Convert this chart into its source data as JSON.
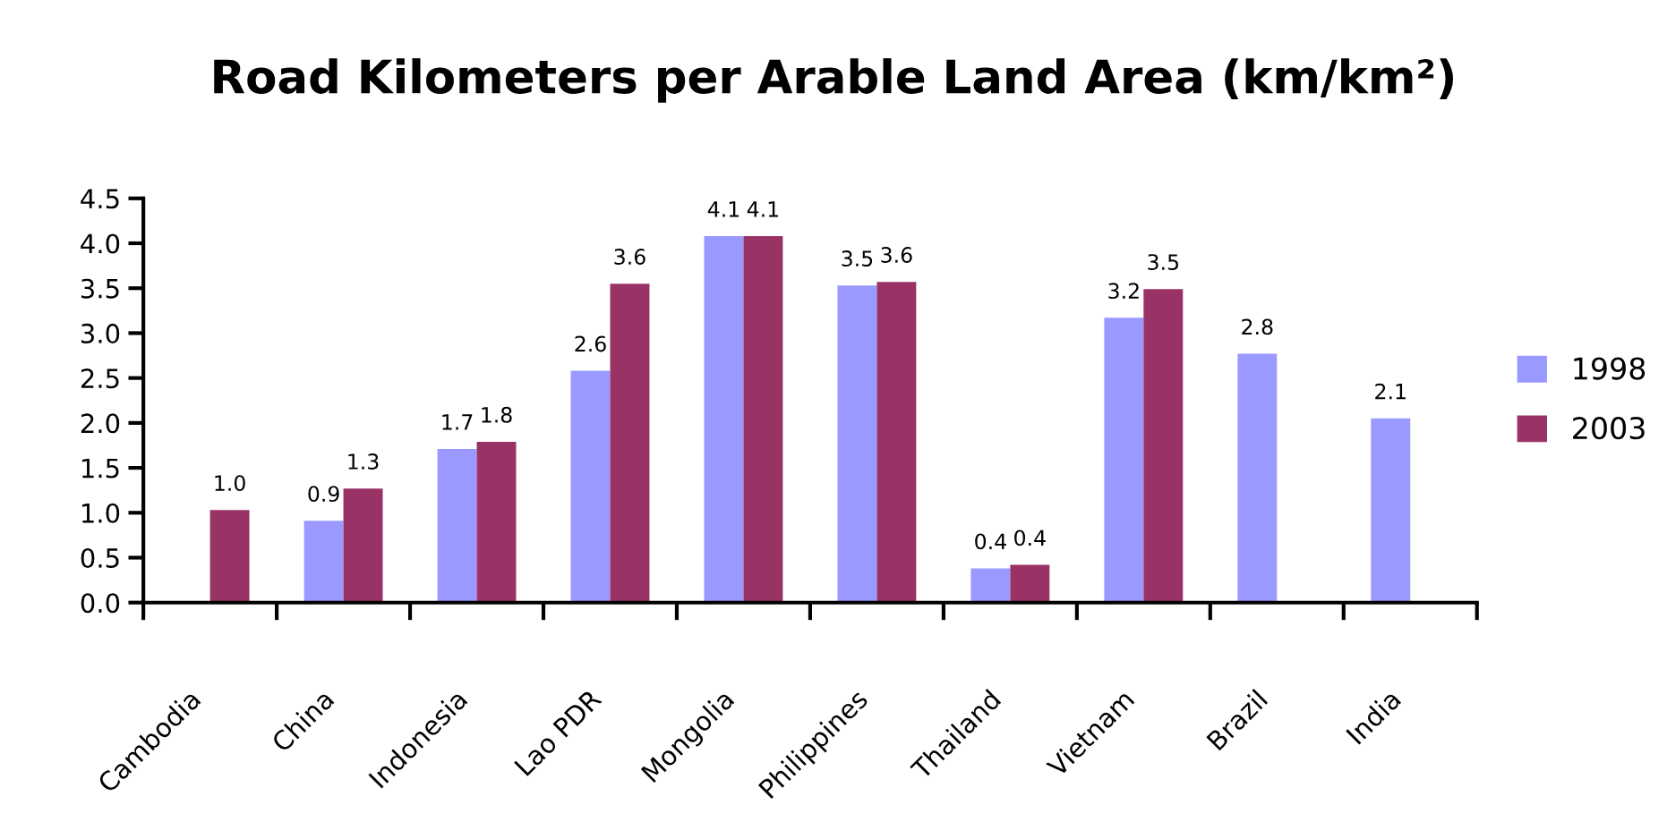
{
  "chart_data": {
    "type": "bar",
    "title": "Road Kilometers per Arable Land Area (km/km²)",
    "categories": [
      "Cambodia",
      "China",
      "Indonesia",
      "Lao PDR",
      "Mongolia",
      "Philippines",
      "Thailand",
      "Vietnam",
      "Brazil",
      "India"
    ],
    "series": [
      {
        "name": "1998",
        "color": "#9999ff",
        "values": [
          null,
          0.91,
          1.71,
          2.58,
          4.08,
          3.53,
          0.38,
          3.17,
          2.77,
          2.05
        ],
        "value_labels": [
          null,
          "0.9",
          "1.7",
          "2.6",
          "4.1",
          "3.5",
          "0.4",
          "3.2",
          "2.8",
          "2.1"
        ]
      },
      {
        "name": "2003",
        "color": "#993366",
        "values": [
          1.03,
          1.27,
          1.79,
          3.55,
          4.08,
          3.57,
          0.42,
          3.49,
          null,
          null
        ],
        "value_labels": [
          "1.0",
          "1.3",
          "1.8",
          "3.6",
          "4.1",
          "3.6",
          "0.4",
          "3.5",
          null,
          null
        ]
      }
    ],
    "ylim": [
      0,
      4.5
    ],
    "yticks": [
      {
        "value": 0,
        "label": "0.0"
      },
      0.5,
      {
        "value": 1,
        "label": "1.0"
      },
      1.5,
      {
        "value": 2,
        "label": "2.0"
      },
      2.5,
      {
        "value": 3,
        "label": "3.0"
      },
      3.5,
      {
        "value": 4,
        "label": "4.0"
      },
      4.5
    ],
    "legend": "right"
  }
}
